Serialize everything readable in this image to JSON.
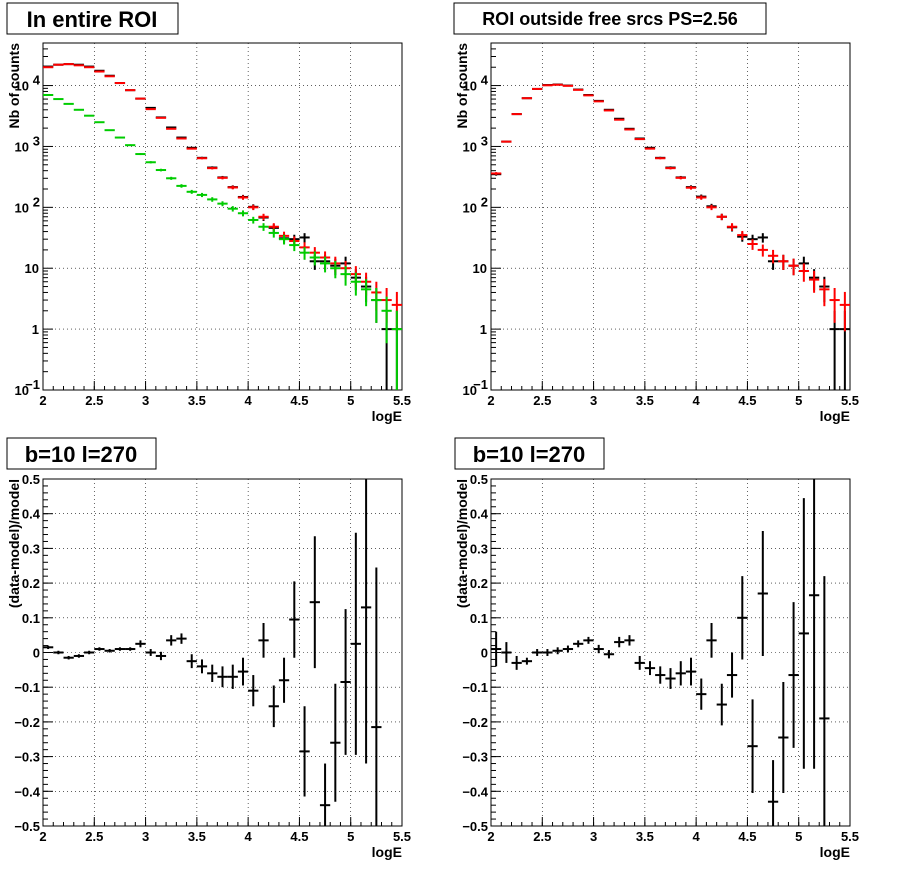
{
  "chart_data": [
    {
      "type": "scatter",
      "title": "In entire ROI",
      "xlabel": "logE",
      "ylabel": "Nb of counts",
      "xlim": [
        2,
        5.5
      ],
      "ylim": [
        0.1,
        50000
      ],
      "yscale": "log",
      "grid": true,
      "x_ticks": [
        "2",
        "2.5",
        "3",
        "3.5",
        "4",
        "4.5",
        "5",
        "5.5"
      ],
      "y_ticks": [
        {
          "value": 0.1,
          "base": "10",
          "exp": "−1"
        },
        {
          "value": 1,
          "base": "1",
          "exp": ""
        },
        {
          "value": 10,
          "base": "10",
          "exp": ""
        },
        {
          "value": 100,
          "base": "10",
          "exp": "2"
        },
        {
          "value": 1000,
          "base": "10",
          "exp": "3"
        },
        {
          "value": 10000,
          "base": "10",
          "exp": "4"
        }
      ],
      "series": [
        {
          "color": "#000000",
          "x": [
            2.05,
            2.15,
            2.25,
            2.35,
            2.45,
            2.55,
            2.65,
            2.75,
            2.85,
            2.95,
            3.05,
            3.15,
            3.25,
            3.35,
            3.45,
            3.55,
            3.65,
            3.75,
            3.85,
            3.95,
            4.05,
            4.15,
            4.25,
            4.35,
            4.45,
            4.55,
            4.65,
            4.75,
            4.85,
            4.95,
            5.05,
            5.15,
            5.25,
            5.35,
            5.45
          ],
          "y": [
            20500,
            22000,
            22500,
            22000,
            20500,
            17500,
            14500,
            11000,
            8400,
            6100,
            4300,
            3000,
            2050,
            1400,
            950,
            650,
            450,
            310,
            215,
            148,
            102,
            68,
            46,
            31,
            30,
            32,
            13,
            13,
            11,
            12,
            7,
            5,
            3,
            1,
            1
          ]
        },
        {
          "color": "#ff0000",
          "x": [
            2.05,
            2.15,
            2.25,
            2.35,
            2.45,
            2.55,
            2.65,
            2.75,
            2.85,
            2.95,
            3.05,
            3.15,
            3.25,
            3.35,
            3.45,
            3.55,
            3.65,
            3.75,
            3.85,
            3.95,
            4.05,
            4.15,
            4.25,
            4.35,
            4.45,
            4.55,
            4.65,
            4.75,
            4.85,
            4.95,
            5.05,
            5.15,
            5.25,
            5.35,
            5.45
          ],
          "y": [
            20000,
            22000,
            22500,
            21500,
            20000,
            17000,
            14200,
            11000,
            8400,
            6100,
            4100,
            2950,
            1950,
            1350,
            920,
            640,
            440,
            305,
            212,
            145,
            100,
            70,
            48,
            34,
            28,
            22,
            18,
            15,
            12,
            10,
            8,
            6,
            4,
            3,
            2.5
          ]
        },
        {
          "color": "#00cc00",
          "x": [
            2.05,
            2.15,
            2.25,
            2.35,
            2.45,
            2.55,
            2.65,
            2.75,
            2.85,
            2.95,
            3.05,
            3.15,
            3.25,
            3.35,
            3.45,
            3.55,
            3.65,
            3.75,
            3.85,
            3.95,
            4.05,
            4.15,
            4.25,
            4.35,
            4.45,
            4.55,
            4.65,
            4.75,
            4.85,
            4.95,
            5.05,
            5.15,
            5.25,
            5.35,
            5.45
          ],
          "y": [
            7000,
            6000,
            5000,
            4000,
            3200,
            2500,
            1850,
            1400,
            1050,
            750,
            550,
            410,
            300,
            225,
            180,
            160,
            135,
            115,
            95,
            80,
            62,
            48,
            38,
            30,
            24,
            18,
            15,
            12,
            10,
            8,
            6,
            4.5,
            3,
            2,
            1
          ]
        }
      ]
    },
    {
      "type": "scatter",
      "title": "ROI outside free srcs PS=2.56",
      "xlabel": "logE",
      "ylabel": "Nb of counts",
      "xlim": [
        2,
        5.5
      ],
      "ylim": [
        0.1,
        50000
      ],
      "yscale": "log",
      "grid": true,
      "x_ticks": [
        "2",
        "2.5",
        "3",
        "3.5",
        "4",
        "4.5",
        "5",
        "5.5"
      ],
      "y_ticks": [
        {
          "value": 0.1,
          "base": "10",
          "exp": "−1"
        },
        {
          "value": 1,
          "base": "1",
          "exp": ""
        },
        {
          "value": 10,
          "base": "10",
          "exp": ""
        },
        {
          "value": 100,
          "base": "10",
          "exp": "2"
        },
        {
          "value": 1000,
          "base": "10",
          "exp": "3"
        },
        {
          "value": 10000,
          "base": "10",
          "exp": "4"
        }
      ],
      "series": [
        {
          "color": "#000000",
          "x": [
            2.05,
            2.15,
            2.25,
            2.35,
            2.45,
            2.55,
            2.65,
            2.75,
            2.85,
            2.95,
            3.05,
            3.15,
            3.25,
            3.35,
            3.45,
            3.55,
            3.65,
            3.75,
            3.85,
            3.95,
            4.05,
            4.15,
            4.25,
            4.35,
            4.45,
            4.55,
            4.65,
            4.75,
            4.85,
            4.95,
            5.05,
            5.15,
            5.25,
            5.35,
            5.45
          ],
          "y": [
            350,
            1200,
            3400,
            6200,
            8800,
            10200,
            10400,
            10000,
            8600,
            7000,
            5600,
            4000,
            2850,
            1950,
            1350,
            950,
            650,
            450,
            310,
            215,
            150,
            104,
            70,
            47,
            33,
            30,
            32,
            13,
            13,
            11,
            12,
            7,
            5,
            1,
            1
          ]
        },
        {
          "color": "#ff0000",
          "x": [
            2.05,
            2.15,
            2.25,
            2.35,
            2.45,
            2.55,
            2.65,
            2.75,
            2.85,
            2.95,
            3.05,
            3.15,
            3.25,
            3.35,
            3.45,
            3.55,
            3.65,
            3.75,
            3.85,
            3.95,
            4.05,
            4.15,
            4.25,
            4.35,
            4.45,
            4.55,
            4.65,
            4.75,
            4.85,
            4.95,
            5.05,
            5.15,
            5.25,
            5.35,
            5.45
          ],
          "y": [
            360,
            1200,
            3400,
            6200,
            8800,
            10100,
            10300,
            9900,
            8500,
            6900,
            5500,
            3900,
            2750,
            1900,
            1320,
            920,
            640,
            440,
            305,
            210,
            145,
            100,
            70,
            48,
            35,
            25,
            20,
            16,
            13,
            11,
            9,
            6.5,
            4.5,
            3,
            2.5
          ]
        }
      ]
    },
    {
      "type": "scatter",
      "title": "b=10 l=270",
      "xlabel": "logE",
      "ylabel": "(data-model)/model",
      "xlim": [
        2,
        5.5
      ],
      "ylim": [
        -0.5,
        0.5
      ],
      "grid": true,
      "x_ticks": [
        "2",
        "2.5",
        "3",
        "3.5",
        "4",
        "4.5",
        "5",
        "5.5"
      ],
      "y_ticks": [
        "−0.5",
        "−0.4",
        "−0.3",
        "−0.2",
        "−0.1",
        "0",
        "0.1",
        "0.2",
        "0.3",
        "0.4",
        "0.5"
      ],
      "series": [
        {
          "color": "#000000",
          "x": [
            2.05,
            2.15,
            2.25,
            2.35,
            2.45,
            2.55,
            2.65,
            2.75,
            2.85,
            2.95,
            3.05,
            3.15,
            3.25,
            3.35,
            3.45,
            3.55,
            3.65,
            3.75,
            3.85,
            3.95,
            4.05,
            4.15,
            4.25,
            4.35,
            4.45,
            4.55,
            4.65,
            4.75,
            4.85,
            4.95,
            5.05,
            5.15,
            5.25
          ],
          "y": [
            0.015,
            0.0,
            -0.015,
            -0.01,
            0.0,
            0.01,
            0.005,
            0.01,
            0.01,
            0.025,
            0.0,
            -0.01,
            0.035,
            0.04,
            -0.025,
            -0.04,
            -0.06,
            -0.07,
            -0.07,
            -0.055,
            -0.11,
            0.035,
            -0.155,
            -0.08,
            0.095,
            -0.285,
            0.145,
            -0.44,
            -0.26,
            -0.085,
            0.025,
            0.13,
            -0.215
          ],
          "err": [
            0.005,
            0.005,
            0.005,
            0.005,
            0.005,
            0.005,
            0.005,
            0.005,
            0.005,
            0.01,
            0.01,
            0.012,
            0.015,
            0.015,
            0.02,
            0.02,
            0.025,
            0.03,
            0.035,
            0.04,
            0.045,
            0.05,
            0.06,
            0.065,
            0.11,
            0.13,
            0.19,
            0.12,
            0.17,
            0.21,
            0.32,
            0.45,
            0.46
          ]
        }
      ]
    },
    {
      "type": "scatter",
      "title": "b=10 l=270",
      "xlabel": "logE",
      "ylabel": "(data-model)/model",
      "xlim": [
        2,
        5.5
      ],
      "ylim": [
        -0.5,
        0.5
      ],
      "grid": true,
      "x_ticks": [
        "2",
        "2.5",
        "3",
        "3.5",
        "4",
        "4.5",
        "5",
        "5.5"
      ],
      "y_ticks": [
        "−0.5",
        "−0.4",
        "−0.3",
        "−0.2",
        "−0.1",
        "0",
        "0.1",
        "0.2",
        "0.3",
        "0.4",
        "0.5"
      ],
      "series": [
        {
          "color": "#000000",
          "x": [
            2.05,
            2.15,
            2.25,
            2.35,
            2.45,
            2.55,
            2.65,
            2.75,
            2.85,
            2.95,
            3.05,
            3.15,
            3.25,
            3.35,
            3.45,
            3.55,
            3.65,
            3.75,
            3.85,
            3.95,
            4.05,
            4.15,
            4.25,
            4.35,
            4.45,
            4.55,
            4.65,
            4.75,
            4.85,
            4.95,
            5.05,
            5.15,
            5.25
          ],
          "y": [
            0.01,
            0.0,
            -0.03,
            -0.025,
            0.0,
            0.0,
            0.005,
            0.01,
            0.025,
            0.035,
            0.01,
            -0.005,
            0.03,
            0.035,
            -0.03,
            -0.045,
            -0.065,
            -0.075,
            -0.06,
            -0.055,
            -0.12,
            0.035,
            -0.15,
            -0.065,
            0.1,
            -0.27,
            0.17,
            -0.43,
            -0.245,
            -0.065,
            0.055,
            0.165,
            -0.19
          ],
          "err": [
            0.05,
            0.03,
            0.02,
            0.01,
            0.01,
            0.01,
            0.01,
            0.01,
            0.01,
            0.01,
            0.012,
            0.012,
            0.015,
            0.015,
            0.02,
            0.02,
            0.025,
            0.03,
            0.035,
            0.04,
            0.045,
            0.05,
            0.06,
            0.065,
            0.12,
            0.135,
            0.18,
            0.12,
            0.16,
            0.21,
            0.39,
            0.5,
            0.41
          ]
        }
      ]
    }
  ]
}
